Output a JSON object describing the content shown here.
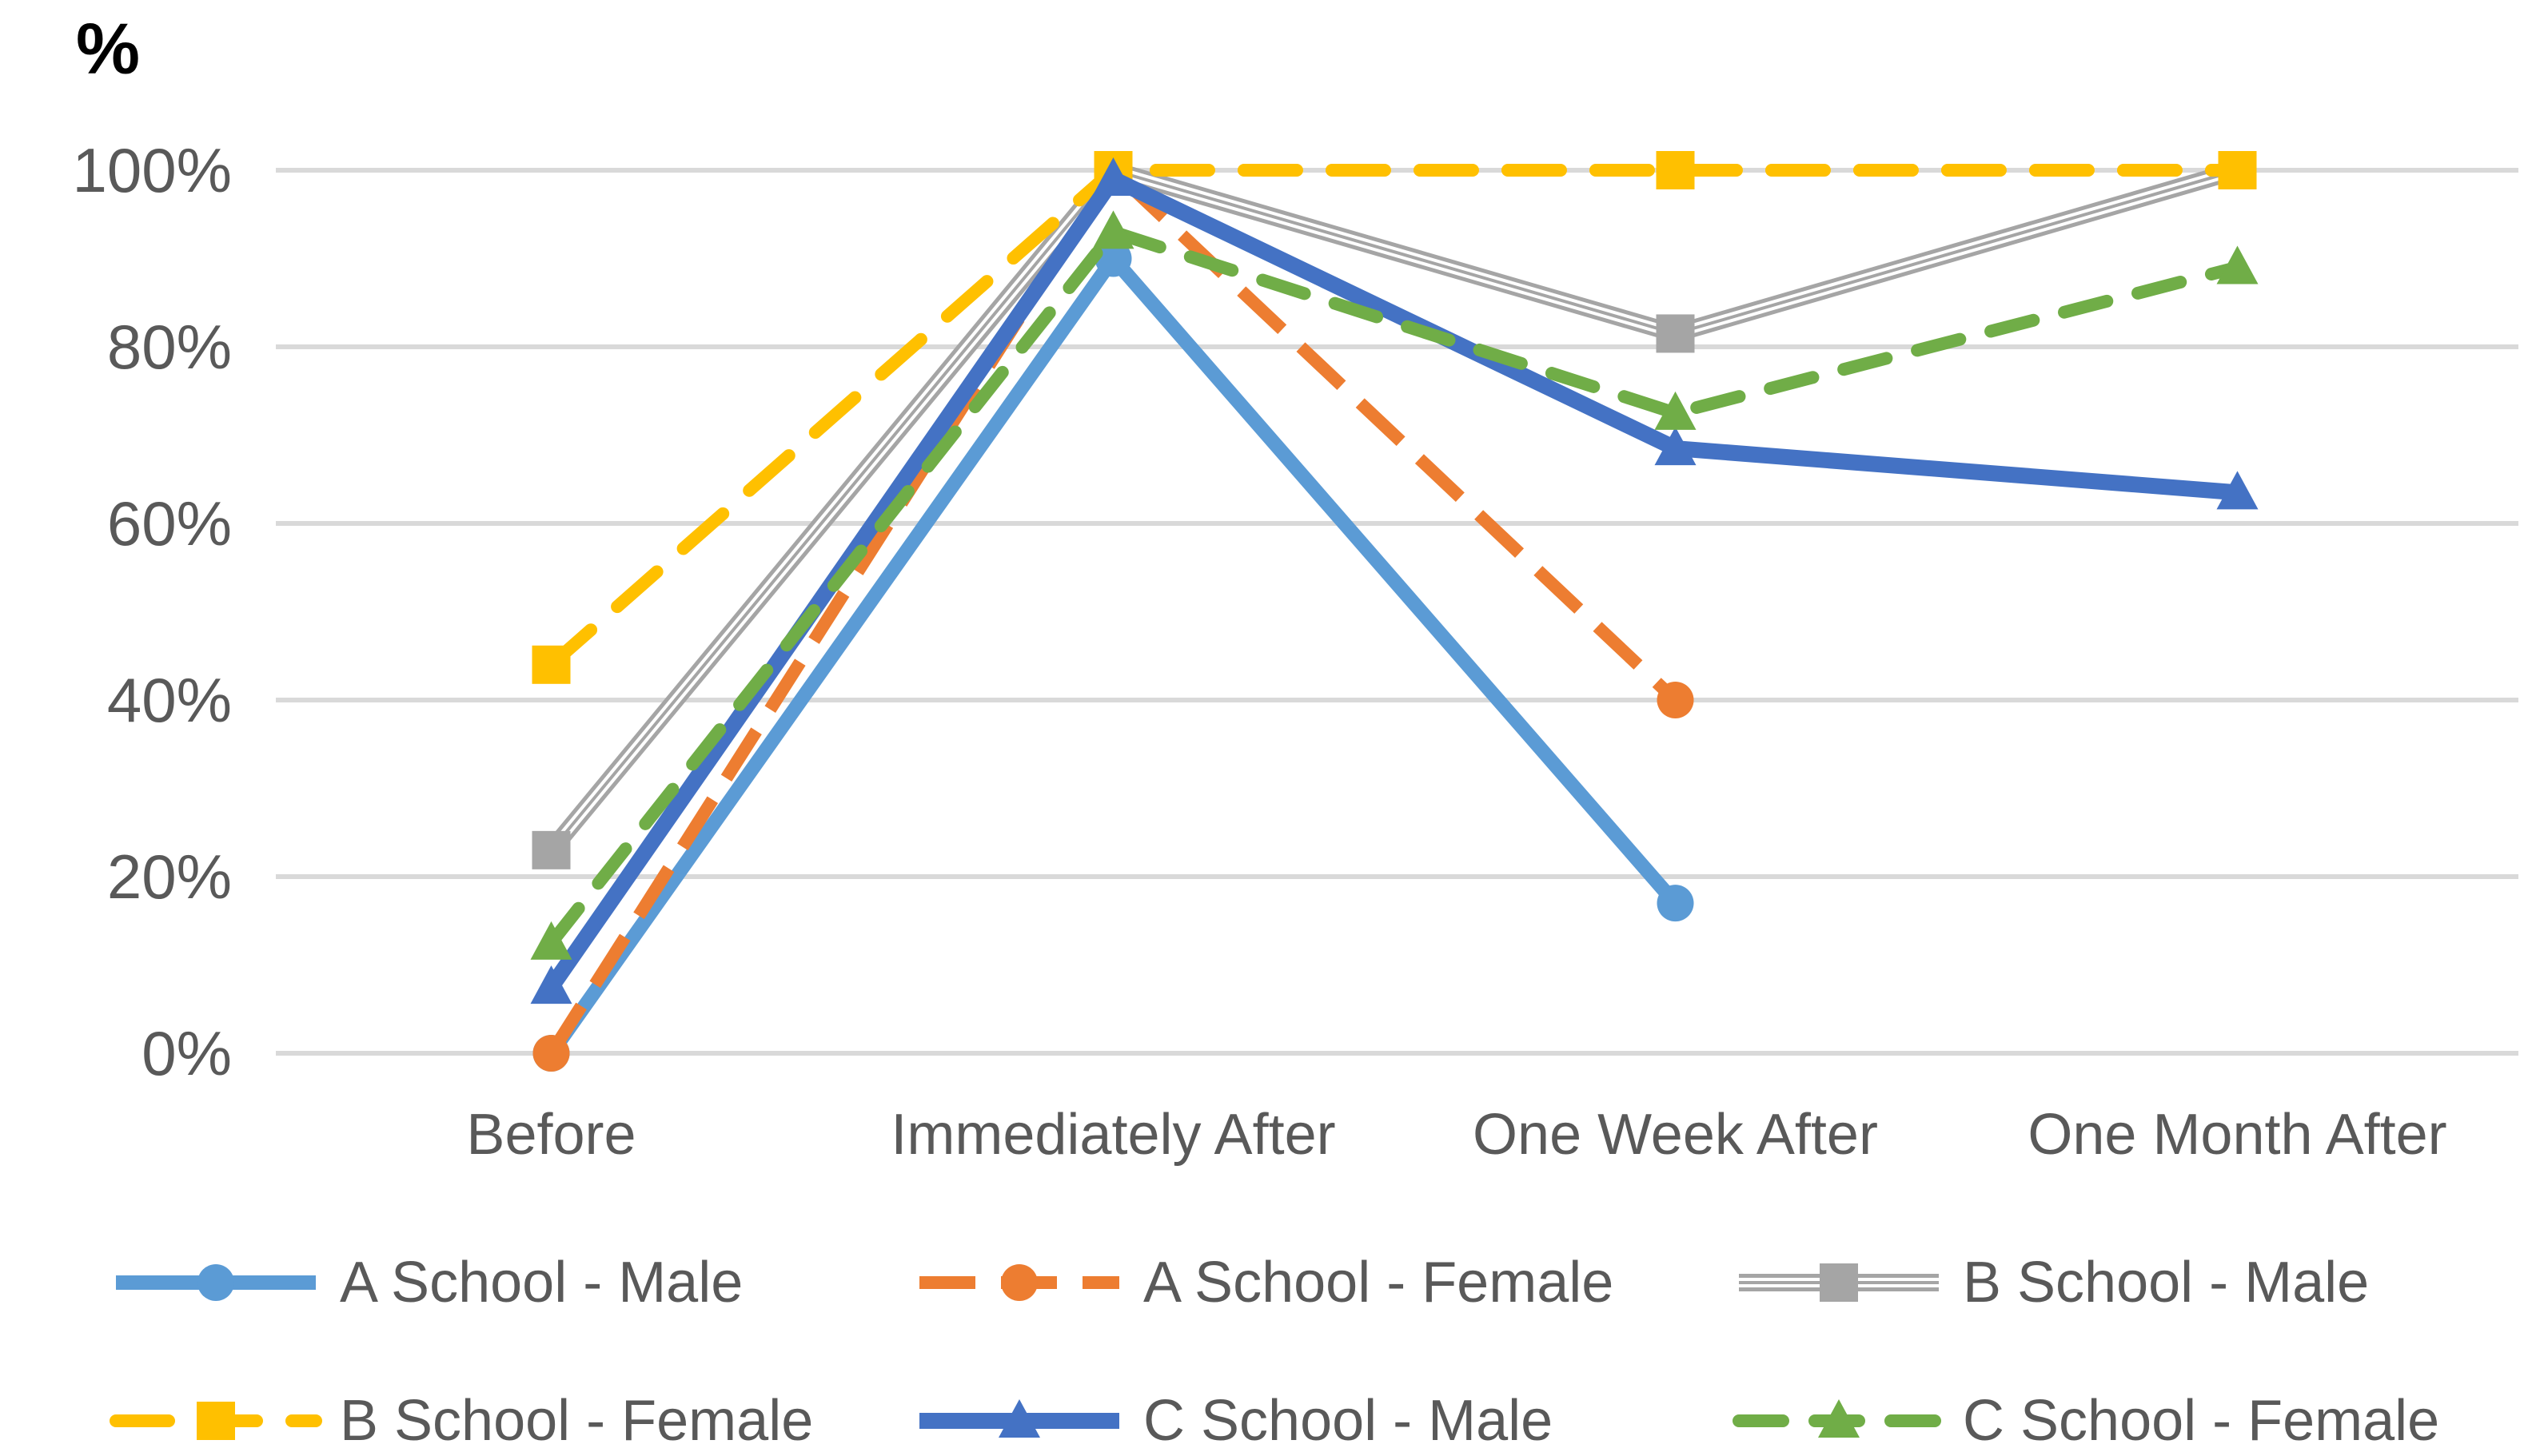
{
  "chart_data": {
    "type": "line",
    "title": "",
    "y_axis_title": "%",
    "xlabel": "",
    "ylabel": "%",
    "categories": [
      "Before",
      "Immediately After",
      "One Week After",
      "One Month After"
    ],
    "y_ticks": [
      {
        "label": "0%",
        "value": 0
      },
      {
        "label": "20%",
        "value": 20
      },
      {
        "label": "40%",
        "value": 40
      },
      {
        "label": "60%",
        "value": 60
      },
      {
        "label": "80%",
        "value": 80
      },
      {
        "label": "100%",
        "value": 100
      }
    ],
    "ylim": [
      0,
      100
    ],
    "grid": true,
    "legend_position": "bottom",
    "series": [
      {
        "name": "A School - Male",
        "color": "#5B9BD5",
        "marker": "circle",
        "line": "solid",
        "values": [
          0,
          90,
          17,
          null
        ]
      },
      {
        "name": "A School - Female",
        "color": "#ED7D31",
        "marker": "circle",
        "line": "dashed",
        "values": [
          0,
          100,
          40,
          null
        ]
      },
      {
        "name": "B School - Male",
        "color": "#A5A5A5",
        "marker": "square",
        "line": "triple",
        "values": [
          23,
          100,
          81.5,
          100
        ]
      },
      {
        "name": "B School - Female",
        "color": "#FFC000",
        "marker": "square",
        "line": "dashed",
        "values": [
          44,
          100,
          100,
          100
        ]
      },
      {
        "name": "C School - Male",
        "color": "#4472C4",
        "marker": "triangle",
        "line": "solid",
        "values": [
          7.5,
          99,
          68.5,
          63.5
        ]
      },
      {
        "name": "C School - Female",
        "color": "#70AD47",
        "marker": "triangle",
        "line": "dashed",
        "values": [
          12.5,
          93,
          72.5,
          89
        ]
      }
    ],
    "legend_rows": [
      [
        0,
        1,
        2
      ],
      [
        3,
        4,
        5
      ]
    ]
  },
  "colors": {
    "background": "#FFFFFF",
    "gridline": "#D9D9D9",
    "tick_text": "#595959",
    "axis_title_text": "#000000",
    "legend_text": "#595959"
  }
}
